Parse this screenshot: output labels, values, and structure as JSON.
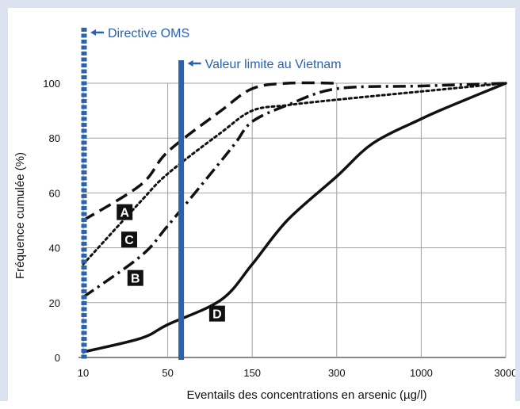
{
  "chart_data": {
    "type": "line",
    "xlabel": "Eventails des concentrations en arsenic (µg/l)",
    "ylabel": "Fréquence cumulée (%)",
    "xlim": [
      10,
      3000
    ],
    "ylim": [
      0,
      100
    ],
    "x_ticks": [
      "10",
      "50",
      "150",
      "300",
      "1000",
      "3000"
    ],
    "y_ticks": [
      "0",
      "20",
      "40",
      "60",
      "80",
      "100"
    ],
    "grid": true,
    "annotations": [
      {
        "label": "Directive OMS",
        "x": 10,
        "style": "dotted",
        "color": "#2a62ad"
      },
      {
        "label": "Valeur limite au Vietnam",
        "x": 50,
        "style": "solid",
        "color": "#2a62ad"
      }
    ],
    "series": [
      {
        "name": "A",
        "style": "dashed",
        "x": [
          10,
          30,
          50,
          100,
          150,
          200,
          300
        ],
        "y": [
          50,
          63,
          75,
          90,
          98,
          100,
          100
        ]
      },
      {
        "name": "B",
        "style": "dashdot",
        "x": [
          10,
          30,
          50,
          90,
          120,
          150,
          200,
          300,
          1000,
          3000
        ],
        "y": [
          22,
          37,
          48,
          68,
          78,
          86,
          92,
          98,
          99,
          100
        ]
      },
      {
        "name": "C",
        "style": "dotted",
        "x": [
          10,
          30,
          50,
          100,
          150,
          200,
          300,
          1000,
          3000
        ],
        "y": [
          34,
          57,
          67,
          82,
          90,
          92,
          94,
          97,
          100
        ]
      },
      {
        "name": "D",
        "style": "solid",
        "x": [
          10,
          30,
          50,
          100,
          150,
          200,
          300,
          500,
          1000,
          1500,
          3000
        ],
        "y": [
          2,
          7,
          12,
          21,
          34,
          50,
          66,
          78,
          87,
          92,
          100
        ]
      }
    ]
  },
  "colors": {
    "frame": "#dce3ee",
    "line": "#111111",
    "marker": "#2a62ad",
    "grid": "#a0a0a0"
  }
}
